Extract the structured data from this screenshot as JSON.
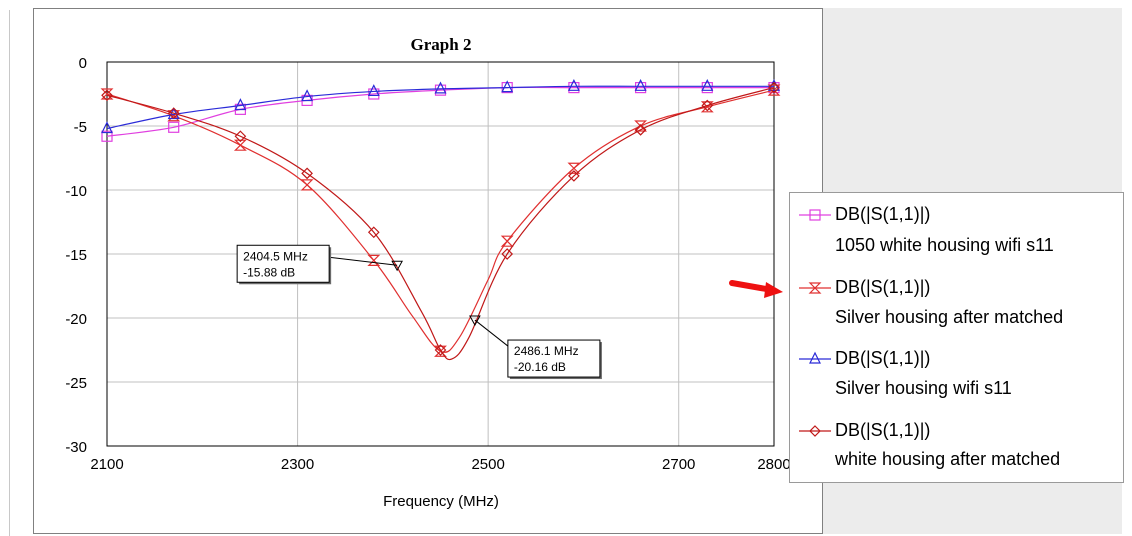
{
  "chart_data": {
    "type": "line",
    "title": "Graph 2",
    "xlabel": "Frequency (MHz)",
    "ylabel": "",
    "xlim": [
      2100,
      2800
    ],
    "ylim": [
      -30,
      0
    ],
    "x_ticks": [
      "2100",
      "2300",
      "2500",
      "2700",
      "2800"
    ],
    "y_ticks": [
      "0",
      "-5",
      "-10",
      "-15",
      "-20",
      "-25",
      "-30"
    ],
    "grid": true,
    "legend_position": "right",
    "series": [
      {
        "name": "DB(|S(1,1)|)",
        "description": "1050 white housing wifi s11",
        "color": "#e040e0",
        "marker": "square",
        "x": [
          2100,
          2170,
          2240,
          2310,
          2380,
          2450,
          2520,
          2590,
          2660,
          2730,
          2800
        ],
        "y": [
          -5.8,
          -5.1,
          -3.7,
          -3.0,
          -2.5,
          -2.2,
          -2.0,
          -2.0,
          -2.0,
          -2.0,
          -2.0
        ]
      },
      {
        "name": "DB(|S(1,1)|)",
        "description": "Silver housing after matched",
        "color": "#e03030",
        "marker": "hourglass",
        "x": [
          2100,
          2170,
          2240,
          2310,
          2380,
          2420,
          2450,
          2470,
          2500,
          2520,
          2590,
          2660,
          2730,
          2800
        ],
        "y": [
          -2.5,
          -4.2,
          -6.5,
          -9.6,
          -15.5,
          -19.8,
          -22.6,
          -21.5,
          -17.0,
          -14.0,
          -8.3,
          -5.0,
          -3.5,
          -2.2
        ]
      },
      {
        "name": "DB(|S(1,1)|)",
        "description": "Silver housing wifi s11",
        "color": "#2b2bd8",
        "marker": "triangle",
        "x": [
          2100,
          2170,
          2240,
          2310,
          2380,
          2450,
          2520,
          2590,
          2660,
          2730,
          2800
        ],
        "y": [
          -5.2,
          -4.1,
          -3.4,
          -2.7,
          -2.3,
          -2.1,
          -2.0,
          -1.9,
          -1.9,
          -1.9,
          -1.9
        ]
      },
      {
        "name": "DB(|S(1,1)|)",
        "description": "white housing after matched",
        "color": "#c01818",
        "marker": "diamond",
        "x": [
          2100,
          2170,
          2240,
          2310,
          2380,
          2430,
          2450,
          2462,
          2480,
          2520,
          2590,
          2660,
          2730,
          2800
        ],
        "y": [
          -2.6,
          -4.0,
          -5.8,
          -8.7,
          -13.3,
          -19.5,
          -22.5,
          -23.2,
          -21.5,
          -15.0,
          -8.9,
          -5.3,
          -3.4,
          -2.0
        ]
      }
    ],
    "markers": [
      {
        "label": "2404.5 MHz",
        "value": "-15.88 dB",
        "x": 2404.5,
        "y": -15.88,
        "box_anchor": "upper-left"
      },
      {
        "label": "2486.1 MHz",
        "value": "-20.16 dB",
        "x": 2486.1,
        "y": -20.16,
        "box_anchor": "lower-right"
      }
    ]
  },
  "colors": {
    "grid": "#c0c0c0",
    "axis": "#000000",
    "arrow": "#ee1111"
  },
  "icons": [
    "red-arrow-icon"
  ]
}
